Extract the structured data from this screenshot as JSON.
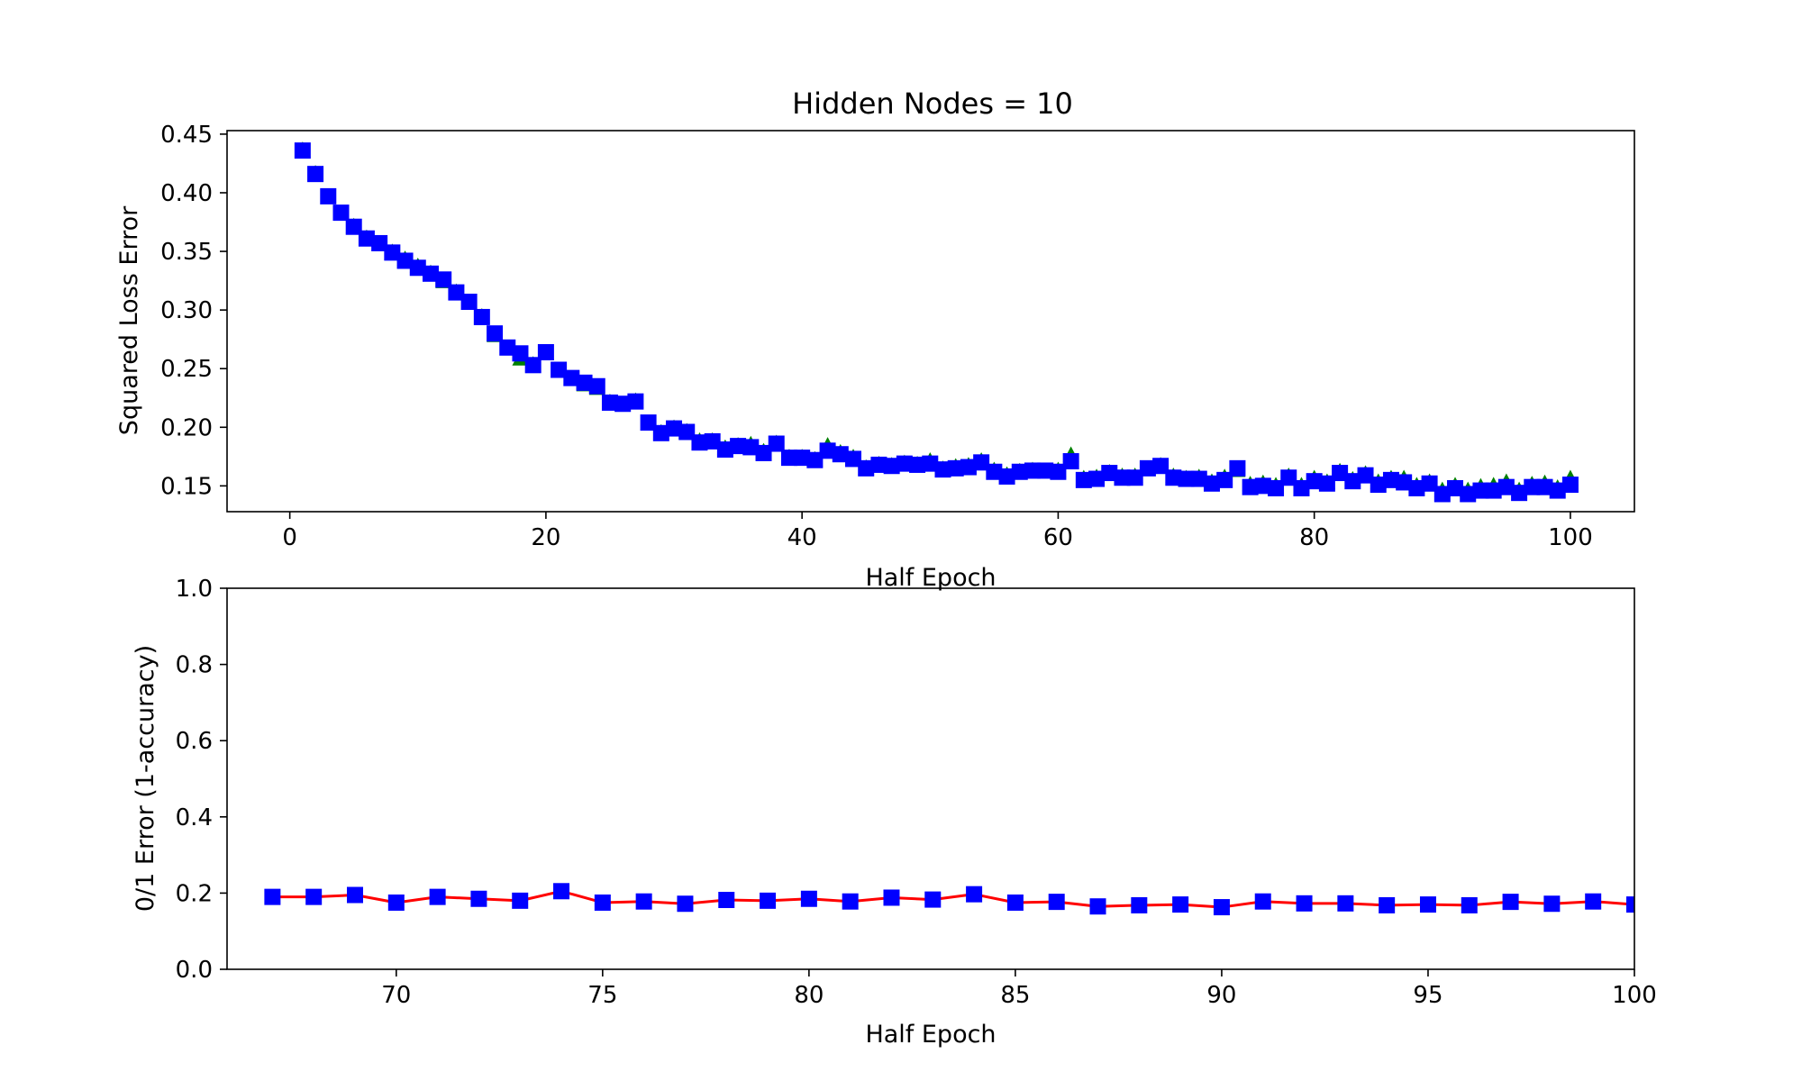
{
  "chart_data": [
    {
      "type": "scatter",
      "title": "Hidden Nodes = 10",
      "xlabel": "Half Epoch",
      "ylabel": "Squared Loss Error",
      "xlim": [
        -4.9,
        105
      ],
      "ylim": [
        0.128,
        0.453
      ],
      "xticks": [
        0,
        20,
        40,
        60,
        80,
        100
      ],
      "xtick_labels": [
        "0",
        "20",
        "40",
        "60",
        "80",
        "100"
      ],
      "yticks": [
        0.15,
        0.2,
        0.25,
        0.3,
        0.35,
        0.4,
        0.45
      ],
      "ytick_labels": [
        "0.15",
        "0.20",
        "0.25",
        "0.30",
        "0.35",
        "0.40",
        "0.45"
      ],
      "grid": false,
      "legend": "none",
      "x_start": 1,
      "series": [
        {
          "marker": "triangle",
          "color": "#008000",
          "values": [
            0.436,
            0.416,
            0.396,
            0.382,
            0.371,
            0.361,
            0.356,
            0.349,
            0.343,
            0.337,
            0.331,
            0.324,
            0.315,
            0.306,
            0.294,
            0.278,
            0.267,
            0.258,
            0.253,
            0.263,
            0.248,
            0.241,
            0.236,
            0.233,
            0.221,
            0.219,
            0.222,
            0.203,
            0.195,
            0.199,
            0.196,
            0.188,
            0.188,
            0.182,
            0.184,
            0.185,
            0.179,
            0.186,
            0.174,
            0.174,
            0.172,
            0.184,
            0.178,
            0.174,
            0.165,
            0.168,
            0.167,
            0.169,
            0.168,
            0.171,
            0.164,
            0.166,
            0.167,
            0.171,
            0.163,
            0.159,
            0.162,
            0.163,
            0.162,
            0.163,
            0.176,
            0.156,
            0.157,
            0.161,
            0.158,
            0.158,
            0.164,
            0.167,
            0.158,
            0.156,
            0.157,
            0.153,
            0.157,
            0.163,
            0.151,
            0.152,
            0.15,
            0.158,
            0.15,
            0.156,
            0.153,
            0.162,
            0.155,
            0.16,
            0.153,
            0.156,
            0.156,
            0.15,
            0.153,
            0.146,
            0.15,
            0.146,
            0.149,
            0.15,
            0.153,
            0.146,
            0.151,
            0.152,
            0.148,
            0.156
          ]
        },
        {
          "marker": "square",
          "color": "#0000ff",
          "values": [
            0.436,
            0.416,
            0.397,
            0.383,
            0.371,
            0.361,
            0.357,
            0.349,
            0.342,
            0.336,
            0.331,
            0.326,
            0.315,
            0.307,
            0.294,
            0.28,
            0.268,
            0.263,
            0.253,
            0.264,
            0.249,
            0.242,
            0.238,
            0.235,
            0.221,
            0.22,
            0.222,
            0.204,
            0.195,
            0.199,
            0.196,
            0.187,
            0.188,
            0.181,
            0.184,
            0.183,
            0.178,
            0.186,
            0.174,
            0.174,
            0.172,
            0.18,
            0.177,
            0.173,
            0.165,
            0.168,
            0.167,
            0.169,
            0.168,
            0.169,
            0.164,
            0.165,
            0.166,
            0.17,
            0.162,
            0.158,
            0.162,
            0.163,
            0.163,
            0.162,
            0.171,
            0.155,
            0.156,
            0.161,
            0.157,
            0.157,
            0.165,
            0.167,
            0.157,
            0.156,
            0.156,
            0.152,
            0.155,
            0.165,
            0.149,
            0.15,
            0.148,
            0.157,
            0.148,
            0.154,
            0.152,
            0.161,
            0.154,
            0.159,
            0.151,
            0.155,
            0.153,
            0.148,
            0.152,
            0.143,
            0.148,
            0.143,
            0.146,
            0.146,
            0.149,
            0.144,
            0.149,
            0.149,
            0.146,
            0.151
          ]
        }
      ]
    },
    {
      "type": "line",
      "title": "",
      "xlabel": "Half Epoch",
      "ylabel": "0/1 Error (1-accuracy)",
      "xlim": [
        65.9,
        100
      ],
      "ylim": [
        0.0,
        1.0
      ],
      "xticks": [
        70,
        75,
        80,
        85,
        90,
        95,
        100
      ],
      "xtick_labels": [
        "70",
        "75",
        "80",
        "85",
        "90",
        "95",
        "100"
      ],
      "yticks": [
        0.0,
        0.2,
        0.4,
        0.6,
        0.8,
        1.0
      ],
      "ytick_labels": [
        "0.0",
        "0.2",
        "0.4",
        "0.6",
        "0.8",
        "1.0"
      ],
      "grid": false,
      "legend": "none",
      "x": [
        67,
        68,
        69,
        70,
        71,
        72,
        73,
        74,
        75,
        76,
        77,
        78,
        79,
        80,
        81,
        82,
        83,
        84,
        85,
        86,
        87,
        88,
        89,
        90,
        91,
        92,
        93,
        94,
        95,
        96,
        97,
        98,
        99,
        100
      ],
      "series": [
        {
          "line_color": "#ff0000",
          "marker": "square",
          "marker_color": "#0000ff",
          "values": [
            0.19,
            0.19,
            0.195,
            0.175,
            0.19,
            0.185,
            0.18,
            0.205,
            0.175,
            0.178,
            0.172,
            0.182,
            0.18,
            0.185,
            0.178,
            0.188,
            0.183,
            0.197,
            0.175,
            0.177,
            0.165,
            0.168,
            0.17,
            0.163,
            0.178,
            0.173,
            0.173,
            0.168,
            0.17,
            0.168,
            0.177,
            0.172,
            0.178,
            0.17
          ]
        }
      ]
    }
  ]
}
